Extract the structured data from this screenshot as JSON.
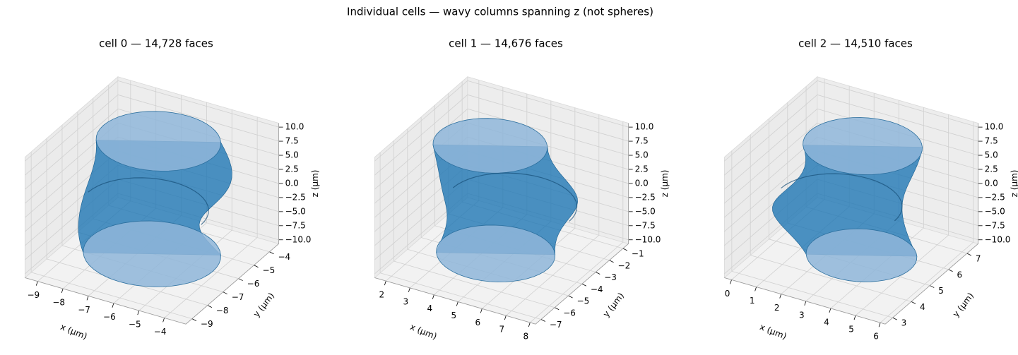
{
  "title": "Individual cells — wavy columns spanning z (not spheres)",
  "chart_data": [
    {
      "type": "surface3d",
      "title": "cell 0 — 14,728 faces",
      "color": "#1f77b4",
      "xlabel": "x (μm)",
      "ylabel": "y (μm)",
      "zlabel": "z (μm)",
      "xlim": [
        -9.5,
        -3.15
      ],
      "ylim": [
        -9.4,
        -3.4
      ],
      "zlim": [
        -10.7,
        10.7
      ],
      "xticks": [
        {
          "value": -9,
          "label": "−9"
        },
        {
          "value": -8,
          "label": "−8"
        },
        {
          "value": -7,
          "label": "−7"
        },
        {
          "value": -6,
          "label": "−6"
        },
        {
          "value": -5,
          "label": "−5"
        },
        {
          "value": -4,
          "label": "−4"
        }
      ],
      "yticks": [
        {
          "value": -9,
          "label": "−9"
        },
        {
          "value": -8,
          "label": "−8"
        },
        {
          "value": -7,
          "label": "−7"
        },
        {
          "value": -6,
          "label": "−6"
        },
        {
          "value": -5,
          "label": "−5"
        },
        {
          "value": -4,
          "label": "−4"
        }
      ],
      "zticks": [
        {
          "value": -10,
          "label": "−10.0"
        },
        {
          "value": -7.5,
          "label": "−7.5"
        },
        {
          "value": -5,
          "label": "−5.0"
        },
        {
          "value": -2.5,
          "label": "−2.5"
        },
        {
          "value": 0,
          "label": "0.0"
        },
        {
          "value": 2.5,
          "label": "2.5"
        },
        {
          "value": 5,
          "label": "5.0"
        },
        {
          "value": 7.5,
          "label": "7.5"
        },
        {
          "value": 10,
          "label": "10.0"
        }
      ],
      "grid": true
    },
    {
      "type": "surface3d",
      "title": "cell 1 — 14,676 faces",
      "color": "#1f77b4",
      "xlabel": "x (μm)",
      "ylabel": "y (μm)",
      "zlabel": "z (μm)",
      "xlim": [
        1.53,
        8.23
      ],
      "ylim": [
        -7.4,
        -0.6
      ],
      "zlim": [
        -10.7,
        10.7
      ],
      "xticks": [
        2,
        3,
        4,
        5,
        6,
        7,
        8
      ],
      "yticks": [
        {
          "value": -7,
          "label": "−7"
        },
        {
          "value": -6,
          "label": "−6"
        },
        {
          "value": -5,
          "label": "−5"
        },
        {
          "value": -4,
          "label": "−4"
        },
        {
          "value": -3,
          "label": "−3"
        },
        {
          "value": -2,
          "label": "−2"
        },
        {
          "value": -1,
          "label": "−1"
        }
      ],
      "zticks": [
        {
          "value": -10,
          "label": "−10.0"
        },
        {
          "value": -7.5,
          "label": "−7.5"
        },
        {
          "value": -5,
          "label": "−5.0"
        },
        {
          "value": -2.5,
          "label": "−2.5"
        },
        {
          "value": 0,
          "label": "0.0"
        },
        {
          "value": 2.5,
          "label": "2.5"
        },
        {
          "value": 5,
          "label": "5.0"
        },
        {
          "value": 7.5,
          "label": "7.5"
        },
        {
          "value": 10,
          "label": "10.0"
        }
      ],
      "grid": true
    },
    {
      "type": "surface3d",
      "title": "cell 2 — 14,510 faces",
      "color": "#1f77b4",
      "xlabel": "x (μm)",
      "ylabel": "y (μm)",
      "zlabel": "z (μm)",
      "xlim": [
        -0.29,
        6.2
      ],
      "ylim": [
        2.6,
        7.6
      ],
      "zlim": [
        -10.7,
        10.7
      ],
      "xticks": [
        0,
        1,
        2,
        3,
        4,
        5,
        6
      ],
      "yticks": [
        3,
        4,
        5,
        6,
        7
      ],
      "zticks": [
        {
          "value": -10,
          "label": "−10.0"
        },
        {
          "value": -7.5,
          "label": "−7.5"
        },
        {
          "value": -5,
          "label": "−5.0"
        },
        {
          "value": -2.5,
          "label": "−2.5"
        },
        {
          "value": 0,
          "label": "0.0"
        },
        {
          "value": 2.5,
          "label": "2.5"
        },
        {
          "value": 5,
          "label": "5.0"
        },
        {
          "value": 7.5,
          "label": "7.5"
        },
        {
          "value": 10,
          "label": "10.0"
        }
      ],
      "grid": true
    }
  ]
}
